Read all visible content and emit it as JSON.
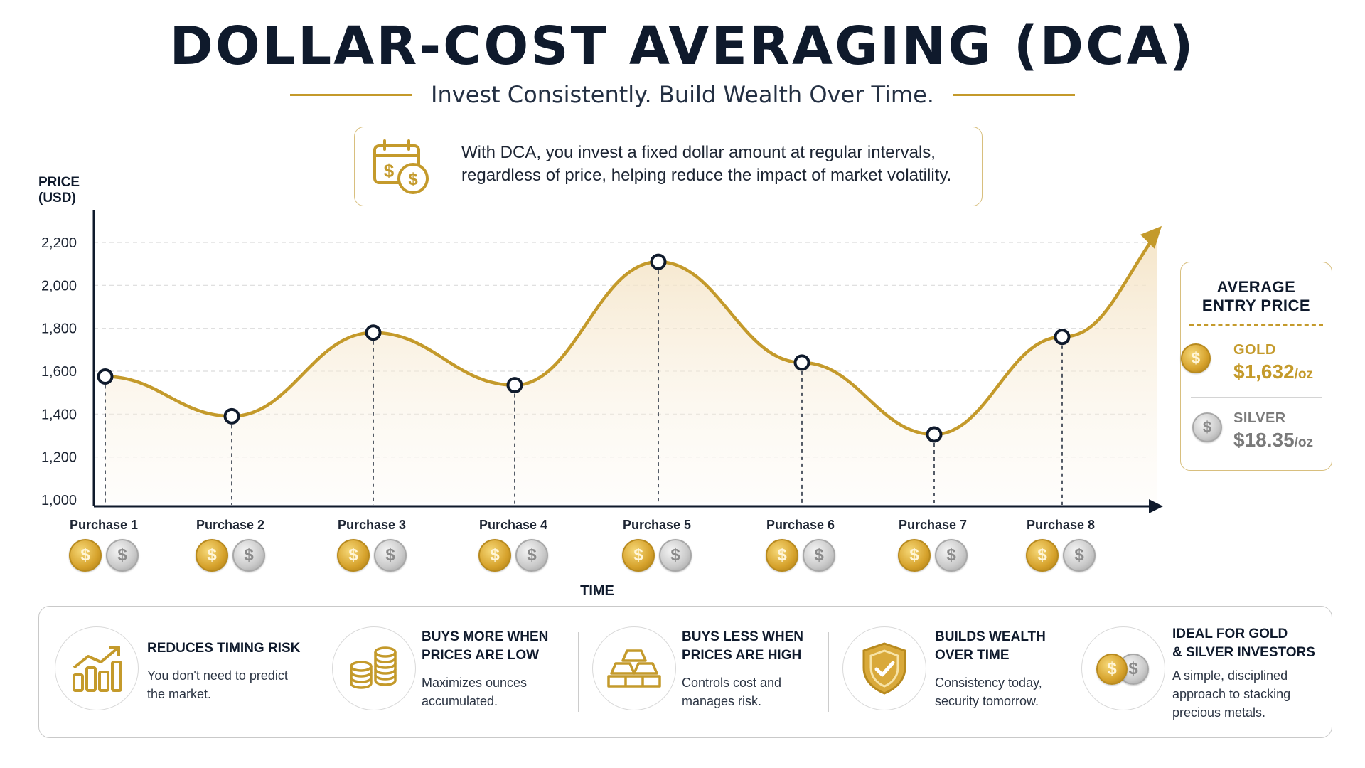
{
  "header": {
    "title": "DOLLAR-COST AVERAGING (DCA)",
    "subtitle": "Invest Consistently. Build Wealth Over Time."
  },
  "info": {
    "text": "With DCA, you invest a fixed dollar amount at regular intervals, regardless of price, helping reduce the impact of market volatility.",
    "icon": "calendar-dollar-icon"
  },
  "colors": {
    "accent": "#c49a2b",
    "line": "#c49a2b",
    "navy": "#0f1a2c",
    "fill": "#f7ecd8"
  },
  "chart_data": {
    "type": "line",
    "ylabel": "PRICE (USD)",
    "xlabel": "TIME",
    "ylim": [
      1000,
      2250
    ],
    "yticks": [
      "1,000",
      "1,200",
      "1,400",
      "1,600",
      "1,800",
      "2,000",
      "2,200"
    ],
    "ytick_values": [
      1000,
      1200,
      1400,
      1600,
      1800,
      2000,
      2200
    ],
    "grid": true,
    "categories": [
      "Purchase 1",
      "Purchase 2",
      "Purchase 3",
      "Purchase 4",
      "Purchase 5",
      "Purchase 6",
      "Purchase 7",
      "Purchase 8"
    ],
    "values": [
      1575,
      1390,
      1780,
      1535,
      2110,
      1640,
      1305,
      1760
    ],
    "trend_end_value": 2250
  },
  "average": {
    "title_line1": "AVERAGE",
    "title_line2": "ENTRY PRICE",
    "gold_label": "GOLD",
    "gold_price": "$1,632",
    "gold_unit": "/oz",
    "silver_label": "SILVER",
    "silver_price": "$18.35",
    "silver_unit": "/oz"
  },
  "coin_symbol": "$",
  "benefits": [
    {
      "title_line1": "REDUCES TIMING RISK",
      "title_line2": "",
      "desc_line1": "You don't need to predict",
      "desc_line2": "the market.",
      "desc_line3": "",
      "icon": "growth-chart-icon"
    },
    {
      "title_line1": "BUYS MORE WHEN",
      "title_line2": "PRICES ARE LOW",
      "desc_line1": "Maximizes ounces",
      "desc_line2": "accumulated.",
      "desc_line3": "",
      "icon": "coin-stacks-icon"
    },
    {
      "title_line1": "BUYS LESS WHEN",
      "title_line2": "PRICES ARE HIGH",
      "desc_line1": "Controls cost and",
      "desc_line2": "manages risk.",
      "desc_line3": "",
      "icon": "gold-bars-icon"
    },
    {
      "title_line1": "BUILDS WEALTH",
      "title_line2": "OVER TIME",
      "desc_line1": "Consistency today,",
      "desc_line2": "security tomorrow.",
      "desc_line3": "",
      "icon": "shield-check-icon"
    },
    {
      "title_line1": "IDEAL FOR GOLD",
      "title_line2": "& SILVER INVESTORS",
      "desc_line1": "A simple, disciplined",
      "desc_line2": "approach to stacking",
      "desc_line3": "precious metals.",
      "icon": "gold-silver-coins-icon"
    }
  ]
}
